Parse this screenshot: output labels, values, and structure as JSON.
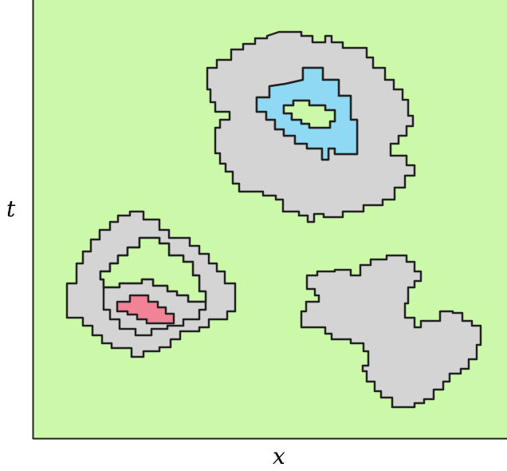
{
  "axes": {
    "x_label": "x",
    "y_label": "t"
  },
  "colors": {
    "background": "#ccf9a9",
    "region": "#d4d4d4",
    "cyan_region": "#8fd9f5",
    "pink_region": "#f08496",
    "stroke": "#222222"
  }
}
